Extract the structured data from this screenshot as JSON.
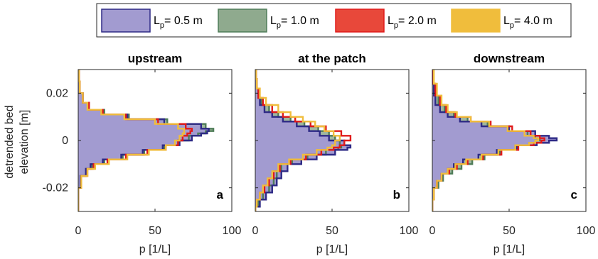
{
  "chart_data": {
    "type": "area",
    "xlabel": "p [1/L]",
    "ylabel_lines": [
      "detrended bed",
      "elevation [m]"
    ],
    "xlim": [
      0,
      100
    ],
    "ylim": [
      -0.03,
      0.03
    ],
    "xticks": [
      0,
      50,
      100
    ],
    "yticks": [
      -0.02,
      0,
      0.02
    ],
    "ytick_labels": [
      "-0.02",
      "0",
      "0.02"
    ],
    "legend": {
      "placement": "top-center",
      "entries": [
        {
          "prefix": "L",
          "sub": "p",
          "suffix": "= 0.5 m",
          "fill": "#a29bd0",
          "edge": "#2e2a86"
        },
        {
          "prefix": "L",
          "sub": "p",
          "suffix": "= 1.0 m",
          "fill": "#8faa8e",
          "edge": "#4f7c58"
        },
        {
          "prefix": "L",
          "sub": "p",
          "suffix": "= 2.0 m",
          "fill": "#e8483a",
          "edge": "#e01a1a"
        },
        {
          "prefix": "L",
          "sub": "p",
          "suffix": "= 4.0 m",
          "fill": "#f0bd3c",
          "edge": "#f0bd3c"
        }
      ]
    },
    "panels": [
      {
        "title": "upstream",
        "letter": "a",
        "series": [
          {
            "y": [
              -0.03,
              -0.02,
              -0.015,
              -0.012,
              -0.01,
              -0.008,
              -0.006,
              -0.004,
              -0.002,
              0,
              0.002,
              0.003,
              0.004,
              0.005,
              0.007,
              0.009,
              0.011,
              0.013,
              0.016,
              0.02,
              0.025,
              0.03
            ],
            "p": [
              0,
              1.5,
              5,
              8,
              16,
              28,
              42,
              55,
              66,
              74,
              80,
              84,
              85,
              80,
              56,
              32,
              16,
              7,
              3,
              1,
              0.5,
              0
            ]
          },
          {
            "y": [
              -0.03,
              -0.02,
              -0.015,
              -0.012,
              -0.01,
              -0.008,
              -0.006,
              -0.004,
              -0.002,
              0,
              0.002,
              0.003,
              0.004,
              0.005,
              0.007,
              0.009,
              0.011,
              0.013,
              0.016,
              0.02,
              0.025,
              0.03
            ],
            "p": [
              0,
              1.5,
              5,
              9,
              17,
              29,
              43,
              56,
              65,
              72,
              78,
              83,
              88,
              83,
              58,
              33,
              17,
              7,
              3,
              1,
              0.5,
              0
            ]
          },
          {
            "y": [
              -0.03,
              -0.02,
              -0.015,
              -0.012,
              -0.01,
              -0.008,
              -0.006,
              -0.004,
              -0.002,
              0,
              0.002,
              0.003,
              0.004,
              0.005,
              0.007,
              0.009,
              0.011,
              0.013,
              0.016,
              0.02,
              0.025,
              0.03
            ],
            "p": [
              0,
              2,
              6,
              10,
              19,
              31,
              45,
              57,
              65,
              68,
              71,
              73,
              74,
              70,
              52,
              31,
              16,
              7,
              3,
              1,
              0.5,
              0
            ]
          },
          {
            "y": [
              -0.03,
              -0.02,
              -0.015,
              -0.012,
              -0.01,
              -0.008,
              -0.006,
              -0.004,
              -0.002,
              0,
              0.002,
              0.003,
              0.004,
              0.005,
              0.007,
              0.009,
              0.011,
              0.013,
              0.016,
              0.02,
              0.025,
              0.03
            ],
            "p": [
              0,
              2,
              6,
              11,
              20,
              32,
              46,
              57,
              63,
              66,
              68,
              69,
              69,
              65,
              50,
              30,
              15,
              6,
              3,
              1,
              0.5,
              0
            ]
          }
        ]
      },
      {
        "title": "at the patch",
        "letter": "b",
        "series": [
          {
            "y": [
              -0.03,
              -0.028,
              -0.025,
              -0.022,
              -0.019,
              -0.016,
              -0.013,
              -0.01,
              -0.008,
              -0.006,
              -0.004,
              -0.003,
              -0.002,
              0,
              0.002,
              0.004,
              0.006,
              0.008,
              0.01,
              0.012,
              0.015,
              0.018,
              0.022,
              0.026,
              0.03
            ],
            "p": [
              0,
              3,
              7,
              11,
              14,
              17,
              21,
              30,
              40,
              52,
              60,
              62,
              58,
              48,
              42,
              35,
              27,
              18,
              11,
              6,
              3,
              2,
              1,
              0.5,
              0
            ]
          },
          {
            "y": [
              -0.03,
              -0.028,
              -0.025,
              -0.022,
              -0.019,
              -0.016,
              -0.013,
              -0.01,
              -0.008,
              -0.006,
              -0.004,
              -0.003,
              -0.002,
              0,
              0.002,
              0.004,
              0.006,
              0.008,
              0.01,
              0.012,
              0.015,
              0.018,
              0.022,
              0.026,
              0.03
            ],
            "p": [
              0,
              2,
              5,
              9,
              12,
              14,
              17,
              24,
              34,
              46,
              54,
              56,
              55,
              52,
              48,
              41,
              32,
              23,
              15,
              9,
              4,
              2,
              1,
              0.5,
              0
            ]
          },
          {
            "y": [
              -0.03,
              -0.028,
              -0.025,
              -0.022,
              -0.019,
              -0.016,
              -0.013,
              -0.01,
              -0.008,
              -0.006,
              -0.004,
              -0.003,
              -0.002,
              0,
              0.002,
              0.004,
              0.006,
              0.008,
              0.01,
              0.012,
              0.015,
              0.018,
              0.022,
              0.026,
              0.03
            ],
            "p": [
              0,
              1,
              3,
              6,
              9,
              12,
              16,
              23,
              33,
              43,
              51,
              55,
              58,
              62,
              56,
              46,
              36,
              26,
              18,
              11,
              5,
              2,
              1,
              0.5,
              0
            ]
          },
          {
            "y": [
              -0.03,
              -0.028,
              -0.025,
              -0.022,
              -0.019,
              -0.016,
              -0.013,
              -0.01,
              -0.008,
              -0.006,
              -0.004,
              -0.003,
              -0.002,
              0,
              0.002,
              0.004,
              0.006,
              0.008,
              0.01,
              0.012,
              0.015,
              0.018,
              0.022,
              0.026,
              0.03
            ],
            "p": [
              0,
              1,
              3,
              5,
              8,
              11,
              15,
              22,
              31,
              40,
              47,
              50,
              52,
              55,
              51,
              45,
              39,
              31,
              23,
              15,
              7,
              3,
              1,
              0.5,
              0
            ]
          }
        ]
      },
      {
        "title": "downstream",
        "letter": "c",
        "series": [
          {
            "y": [
              -0.03,
              -0.025,
              -0.02,
              -0.017,
              -0.014,
              -0.012,
              -0.01,
              -0.008,
              -0.006,
              -0.004,
              -0.002,
              -0.001,
              0,
              0.001,
              0.002,
              0.004,
              0.006,
              0.008,
              0.01,
              0.012,
              0.015,
              0.019,
              0.024,
              0.03
            ],
            "p": [
              0,
              1,
              3,
              6,
              10,
              14,
              20,
              30,
              42,
              55,
              68,
              76,
              81,
              76,
              67,
              50,
              32,
              18,
              10,
              5,
              2,
              1,
              0.5,
              0
            ]
          },
          {
            "y": [
              -0.03,
              -0.025,
              -0.02,
              -0.017,
              -0.014,
              -0.012,
              -0.01,
              -0.008,
              -0.006,
              -0.004,
              -0.002,
              -0.001,
              0,
              0.001,
              0.002,
              0.004,
              0.006,
              0.008,
              0.01,
              0.012,
              0.015,
              0.019,
              0.024,
              0.03
            ],
            "p": [
              0,
              1,
              4,
              7,
              13,
              19,
              26,
              34,
              44,
              54,
              63,
              67,
              70,
              67,
              62,
              50,
              36,
              23,
              14,
              8,
              4,
              1.5,
              0.5,
              0
            ]
          },
          {
            "y": [
              -0.03,
              -0.025,
              -0.02,
              -0.017,
              -0.014,
              -0.012,
              -0.01,
              -0.008,
              -0.006,
              -0.004,
              -0.002,
              -0.001,
              0,
              0.001,
              0.002,
              0.004,
              0.006,
              0.008,
              0.01,
              0.012,
              0.015,
              0.019,
              0.024,
              0.03
            ],
            "p": [
              0,
              1,
              3,
              6,
              11,
              16,
              23,
              33,
              45,
              56,
              66,
              71,
              73,
              70,
              64,
              52,
              38,
              25,
              15,
              9,
              5,
              2,
              0.5,
              0
            ]
          },
          {
            "y": [
              -0.03,
              -0.025,
              -0.02,
              -0.017,
              -0.014,
              -0.012,
              -0.01,
              -0.008,
              -0.006,
              -0.004,
              -0.002,
              -0.001,
              0,
              0.001,
              0.002,
              0.004,
              0.006,
              0.008,
              0.01,
              0.012,
              0.015,
              0.019,
              0.024,
              0.03
            ],
            "p": [
              0,
              1,
              3,
              6,
              10,
              15,
              22,
              32,
              43,
              54,
              63,
              67,
              69,
              66,
              60,
              49,
              37,
              25,
              16,
              10,
              6,
              3,
              1,
              0
            ]
          }
        ]
      }
    ]
  }
}
